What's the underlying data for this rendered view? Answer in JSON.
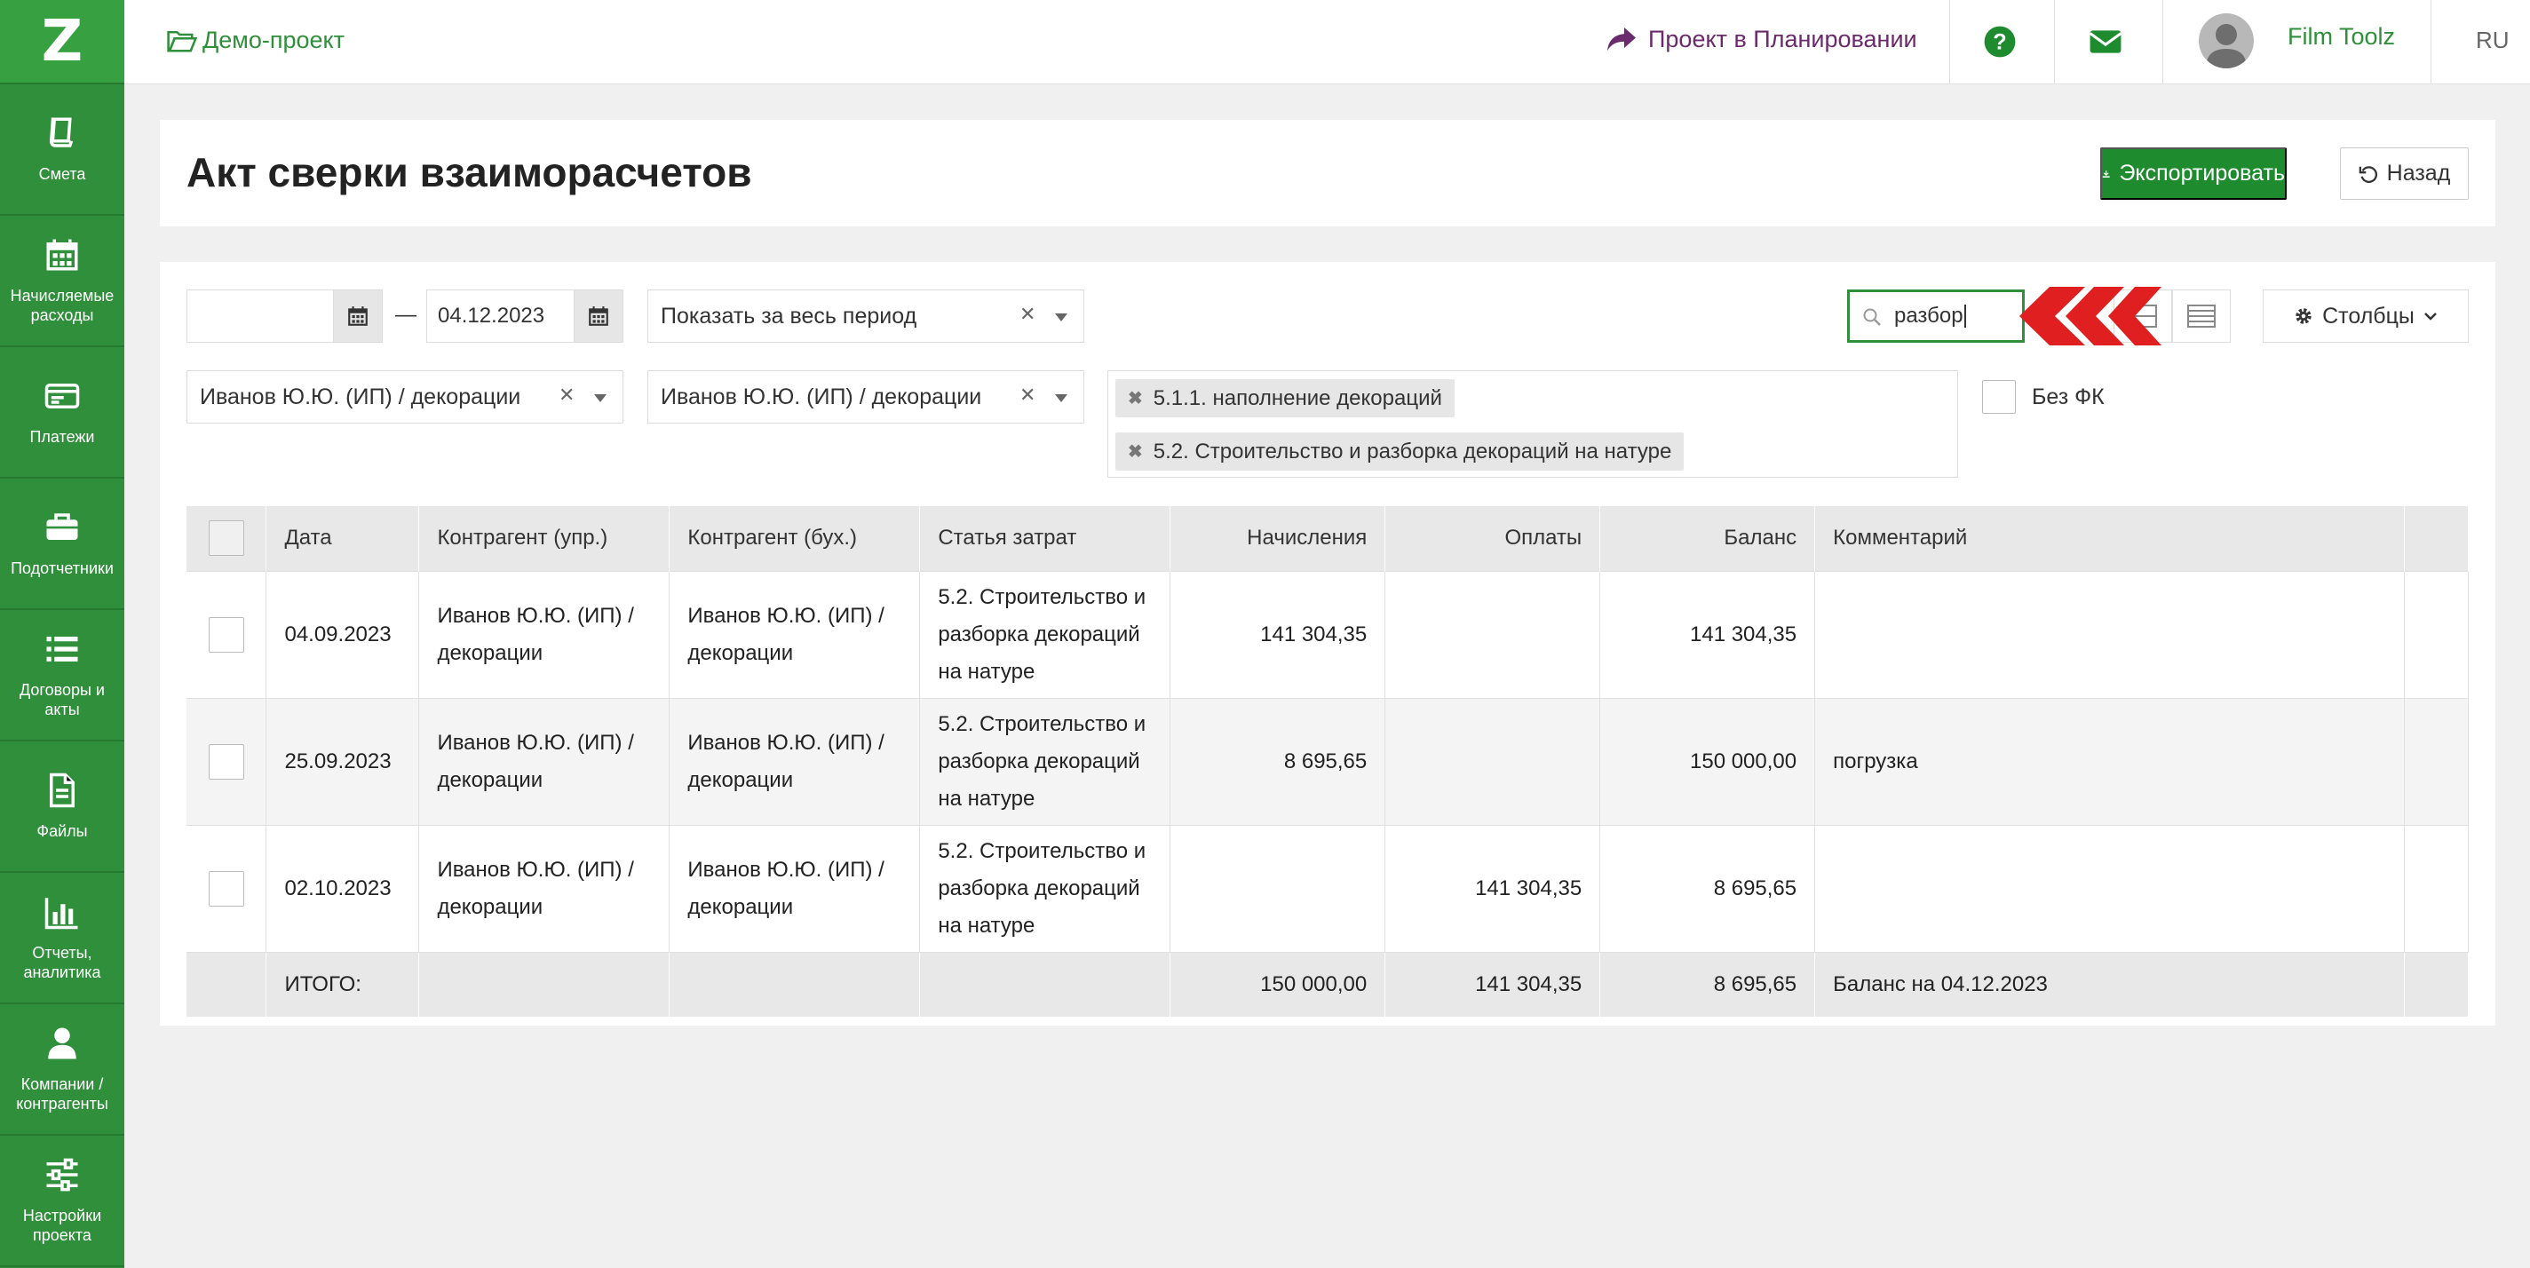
{
  "sidebar": {
    "logo": "Z",
    "items": [
      {
        "label": "Смета",
        "icon": "book-icon"
      },
      {
        "label": "Начисляемые расходы",
        "icon": "calendar-icon"
      },
      {
        "label": "Платежи",
        "icon": "payment-card-icon"
      },
      {
        "label": "Подотчетники",
        "icon": "briefcase-icon"
      },
      {
        "label": "Договоры и акты",
        "icon": "list-icon"
      },
      {
        "label": "Файлы",
        "icon": "file-icon"
      },
      {
        "label": "Отчеты, аналитика",
        "icon": "bar-chart-icon"
      },
      {
        "label": "Компании / контрагенты",
        "icon": "user-icon"
      },
      {
        "label": "Настройки проекта",
        "icon": "sliders-icon"
      }
    ]
  },
  "topbar": {
    "project": "Демо-проект",
    "planning": "Проект в Планировании",
    "user": "Film Toolz",
    "lang": "RU"
  },
  "header": {
    "title": "Акт сверки взаиморасчетов",
    "export_label": "Экспортировать",
    "back_label": "Назад"
  },
  "filters": {
    "date_from": "",
    "date_dash": "—",
    "date_to": "04.12.2023",
    "period": "Показать за весь период",
    "counterparty_mgmt": "Иванов Ю.Ю. (ИП) / декорации",
    "counterparty_acc": "Иванов Ю.Ю. (ИП) / декорации",
    "cost_items": [
      "5.1.1. наполнение декораций",
      "5.2. Строительство и разборка декораций на натуре"
    ],
    "no_fk_label": "Без ФК",
    "search_value": "разбор",
    "columns_label": "Столбцы"
  },
  "table": {
    "headers": [
      "Дата",
      "Контрагент (упр.)",
      "Контрагент (бух.)",
      "Статья затрат",
      "Начисления",
      "Оплаты",
      "Баланс",
      "Комментарий"
    ],
    "rows": [
      {
        "date": "04.09.2023",
        "cp_mgmt": "Иванов Ю.Ю. (ИП) / декорации",
        "cp_acc": "Иванов Ю.Ю. (ИП) / декорации",
        "item": "5.2. Строительство и разборка декораций на натуре",
        "accruals": "141 304,35",
        "payments": "",
        "balance": "141 304,35",
        "comment": ""
      },
      {
        "date": "25.09.2023",
        "cp_mgmt": "Иванов Ю.Ю. (ИП) / декорации",
        "cp_acc": "Иванов Ю.Ю. (ИП) / декорации",
        "item": "5.2. Строительство и разборка декораций на натуре",
        "accruals": "8 695,65",
        "payments": "",
        "balance": "150 000,00",
        "comment": "погрузка"
      },
      {
        "date": "02.10.2023",
        "cp_mgmt": "Иванов Ю.Ю. (ИП) / декорации",
        "cp_acc": "Иванов Ю.Ю. (ИП) / декорации",
        "item": "5.2. Строительство и разборка декораций на натуре",
        "accruals": "",
        "payments": "141 304,35",
        "balance": "8 695,65",
        "comment": ""
      }
    ],
    "total": {
      "label": "ИТОГО:",
      "accruals": "150 000,00",
      "payments": "141 304,35",
      "balance": "8 695,65",
      "comment": "Баланс на 04.12.2023"
    }
  },
  "colors": {
    "brand": "#2f8f3a",
    "export": "#1e8c2e",
    "planning": "#6b2a6b",
    "pointer": "#e02020"
  }
}
